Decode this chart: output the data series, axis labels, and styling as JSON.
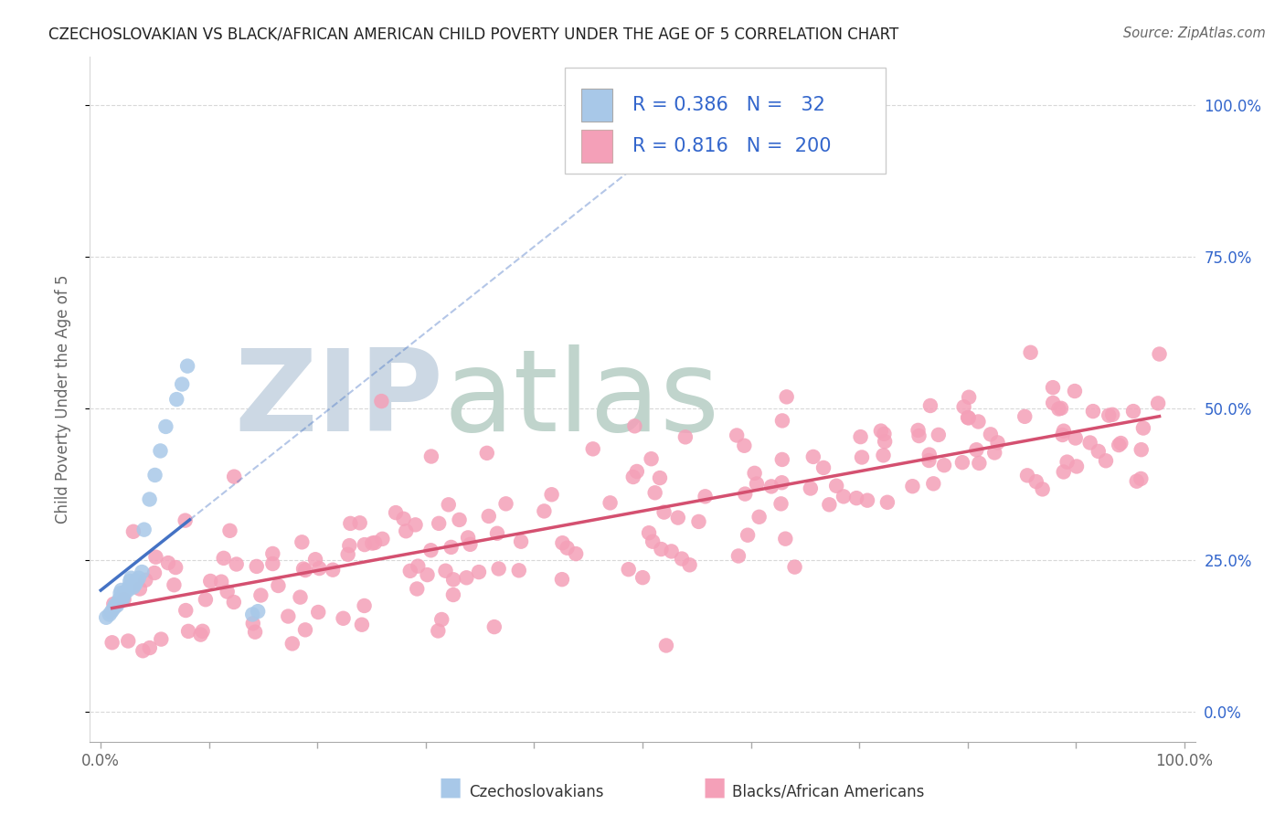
{
  "title": "CZECHOSLOVAKIAN VS BLACK/AFRICAN AMERICAN CHILD POVERTY UNDER THE AGE OF 5 CORRELATION CHART",
  "source": "Source: ZipAtlas.com",
  "ylabel": "Child Poverty Under the Age of 5",
  "blue_R": "0.386",
  "blue_N": "32",
  "pink_R": "0.816",
  "pink_N": "200",
  "blue_scatter_color": "#a8c8e8",
  "pink_scatter_color": "#f4a0b8",
  "blue_line_color": "#4472c4",
  "pink_line_color": "#d45070",
  "watermark_zip": "ZIP",
  "watermark_atlas": "atlas",
  "watermark_color_zip": "#c8d8e8",
  "watermark_color_atlas": "#c8d8e0",
  "legend_label_blue": "Czechoslovakians",
  "legend_label_pink": "Blacks/African Americans",
  "bg_color": "#ffffff",
  "grid_color": "#d8d8d8",
  "text_color": "#666666",
  "title_color": "#222222",
  "legend_text_color": "#3366cc",
  "right_tick_color": "#3366cc"
}
